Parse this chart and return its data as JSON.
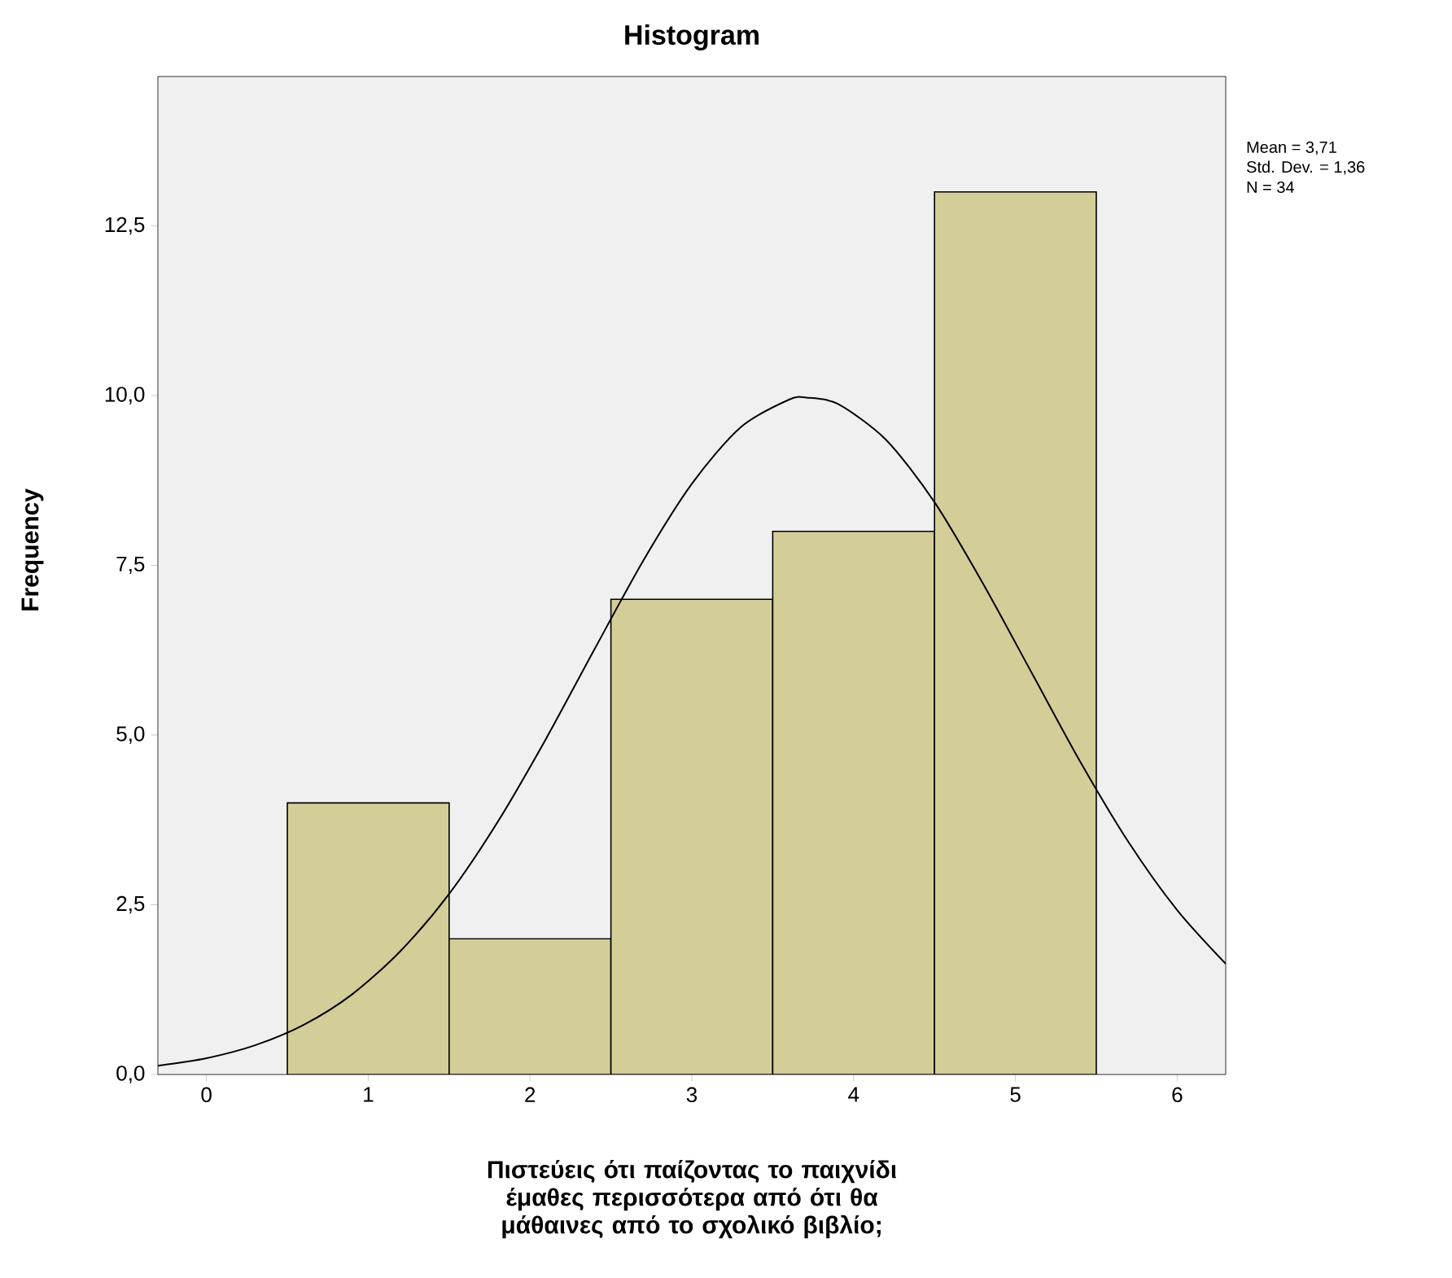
{
  "chart_data": {
    "type": "histogram",
    "title": "Histogram",
    "xlabel": "Πιστεύεις ότι παίζοντας το παιχνίδι έμαθες περισσότερα από ότι θα μάθαινες από το σχολικό βιβλίο;",
    "ylabel": "Frequency",
    "bins": [
      0.5,
      1.5,
      2.5,
      3.5,
      4.5,
      5.5
    ],
    "values": [
      4,
      2,
      7,
      8,
      13
    ],
    "color": "#d3ce97",
    "xlim": [
      -0.3,
      6.3
    ],
    "xticks": [
      0,
      1,
      2,
      3,
      4,
      5,
      6
    ],
    "ylim": [
      0,
      14.7
    ],
    "yticks": [
      {
        "value": 0,
        "label": "0,0"
      },
      {
        "value": 2.5,
        "label": "2,5"
      },
      {
        "value": 5,
        "label": "5,0"
      },
      {
        "value": 7.5,
        "label": "7,5"
      },
      {
        "value": 10,
        "label": "10,0"
      },
      {
        "value": 12.5,
        "label": "12,5"
      }
    ],
    "grid": false,
    "series": [
      {
        "type": "line",
        "color": "#000000",
        "x": [
          -0.3,
          0,
          0.3,
          0.6,
          0.9,
          1.2,
          1.5,
          1.8,
          2.1,
          2.4,
          2.7,
          3.0,
          3.3,
          3.6,
          3.71,
          3.9,
          4.2,
          4.5,
          4.8,
          5.1,
          5.4,
          5.7,
          6.0,
          6.3
        ],
        "values": [
          0.13,
          0.24,
          0.43,
          0.73,
          1.18,
          1.82,
          2.66,
          3.72,
          4.95,
          6.27,
          7.57,
          8.7,
          9.53,
          9.94,
          9.97,
          9.88,
          9.35,
          8.43,
          7.23,
          5.92,
          4.61,
          3.42,
          2.42,
          1.63
        ]
      }
    ],
    "annotations": [
      "Mean = 3,71",
      "Std. Dev. = 1,36",
      "N = 34"
    ]
  }
}
